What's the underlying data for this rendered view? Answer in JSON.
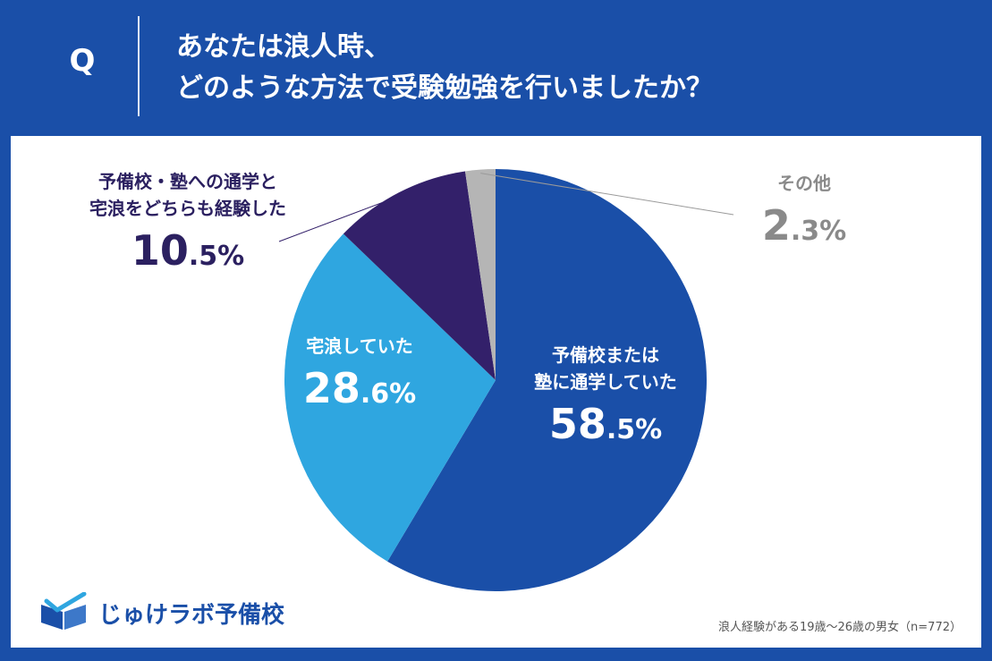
{
  "header": {
    "q_mark": "Q",
    "question_line1": "あなたは浪人時、",
    "question_line2": "どのような方法で受験勉強を行いましたか？"
  },
  "chart_data": {
    "type": "pie",
    "start_angle_deg": 0,
    "direction": "clockwise",
    "slices": [
      {
        "label_line1": "予備校または",
        "label_line2": "塾に通学していた",
        "pct_int": "58",
        "pct_dec": ".5%",
        "value": 58.5,
        "color": "#1a4fa8"
      },
      {
        "label_line1": "宅浪していた",
        "label_line2": "",
        "pct_int": "28",
        "pct_dec": ".6%",
        "value": 28.6,
        "color": "#2fa6e0"
      },
      {
        "label_line1": "予備校・塾への通学と",
        "label_line2": "宅浪をどちらも経験した",
        "pct_int": "10",
        "pct_dec": ".5%",
        "value": 10.5,
        "color": "#33206a"
      },
      {
        "label_line1": "その他",
        "label_line2": "",
        "pct_int": "2",
        "pct_dec": ".3%",
        "value": 2.3,
        "color": "#b5b5b5"
      }
    ]
  },
  "logo": {
    "text": "じゅけラボ予備校",
    "icon": "book-check-logo-icon",
    "color": "#1a4fa8"
  },
  "footnote": "浪人経験がある19歳〜26歳の男女（n=772）"
}
